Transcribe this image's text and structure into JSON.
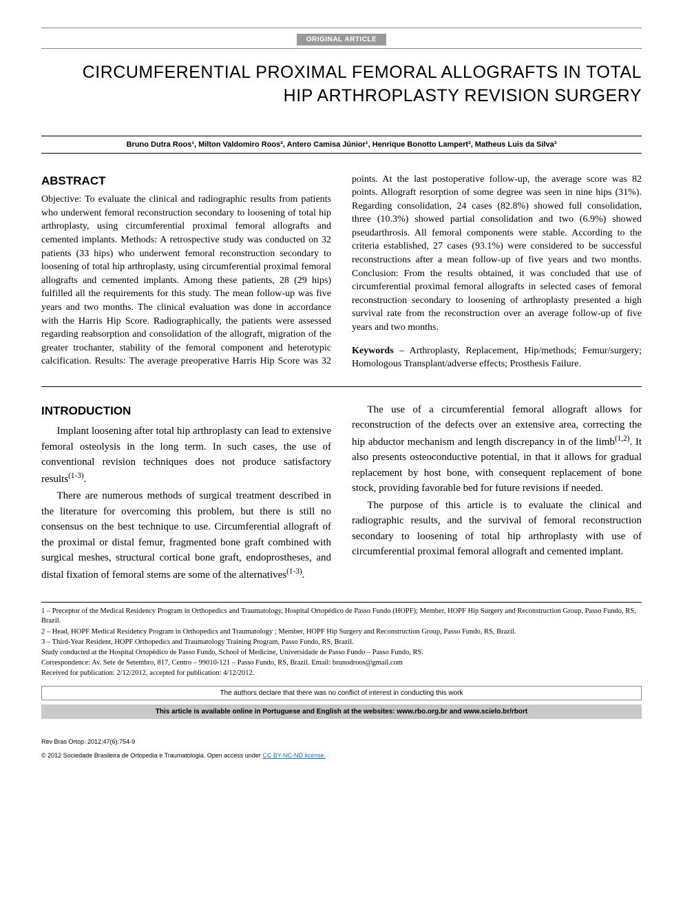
{
  "tag": "ORIGINAL ARTICLE",
  "title_line1": "CIRCUMFERENTIAL PROXIMAL FEMORAL ALLOGRAFTS IN TOTAL",
  "title_line2": "HIP ARTHROPLASTY REVISION SURGERY",
  "authors": "Bruno Dutra Roos¹, Milton Valdomiro Roos², Antero Camisa Júnior¹, Henrique Bonotto Lampert³, Matheus Luis da Silva³",
  "abstract": {
    "heading": "ABSTRACT",
    "body_left": "Objective: To evaluate the clinical and radiographic results from patients who underwent femoral reconstruction secondary to loosening of total hip arthroplasty, using circumferential proximal femoral allografts and cemented implants. Methods: A retrospective study was conducted on 32 patients (33 hips) who underwent femoral reconstruction secondary to loosening of total hip arthroplasty, using circumferential proximal femoral allografts and cemented implants. Among these patients, 28 (29 hips) fulfilled all the requirements for this study. The mean follow-up was five years and two months. The clinical evaluation was done in accordance with the Harris Hip Score. Radiographically, the patients were assessed regarding reabsorption and consolidation of the allograft, migration of the greater trochanter, stability of the femoral component and heterotypic calcification. Results: The average preoperative Harris Hip Score was 32 points. At the",
    "body_right": "last postoperative follow-up, the average score was 82 points. Allograft resorption of some degree was seen in nine hips (31%). Regarding consolidation, 24 cases (82.8%) showed full consolidation, three (10.3%) showed partial consolidation and two (6.9%) showed pseudarthrosis. All femoral components were stable. According to the criteria established, 27 cases (93.1%) were considered to be successful reconstructions after a mean follow-up of five years and two months. Conclusion: From the results obtained, it was concluded that use of circumferential proximal femoral allografts in selected cases of femoral reconstruction secondary to loosening of arthroplasty presented a high survival rate from the reconstruction over an average follow-up of five years and two months.",
    "keywords_label": "Keywords",
    "keywords": " – Arthroplasty, Replacement, Hip/methods; Femur/surgery; Homologous Transplant/adverse effects; Prosthesis Failure."
  },
  "intro": {
    "heading": "INTRODUCTION",
    "p1": "Implant loosening after total hip arthroplasty can lead to extensive femoral osteolysis in the long term. In such cases, the use of conventional revision techniques does not produce satisfactory results",
    "p1_cite": "(1-3)",
    "p2": "There are numerous methods of surgical treatment described in the literature for overcoming this problem, but there is still no consensus on the best technique to use. Circumferential allograft of the proximal or distal femur, fragmented bone graft combined with surgical meshes, structural cortical bone graft, endoprostheses, and distal fixation of femoral stems are some of the alternatives",
    "p2_cite": "(1-3)",
    "p3a": "The use of a circumferential femoral allograft allows for reconstruction of the defects over an extensive area, correcting the hip abductor mechanism and length discrepancy in of the limb",
    "p3_cite": "(1,2)",
    "p3b": ". It also presents osteoconductive potential, in that it allows for gradual replacement by host bone, with consequent replacement of bone stock, providing favorable bed for future revisions if needed.",
    "p4": "The purpose of this article is to evaluate the clinical and radiographic results, and the survival of femoral reconstruction secondary to loosening of total hip arthroplasty with use of circumferential proximal femoral allograft and cemented implant."
  },
  "footnotes": {
    "f1": "1 – Preceptor of the Medical Residency Program in Orthopedics and Traumatology, Hospital Ortopédico de Passo Fundo (HOPF); Member, HOPF Hip Surgery and Reconstruction Group, Passo Fundo, RS, Brazil.",
    "f2": "2 – Head, HOPF Medical Residency Program in Orthopedics and Traumatology ; Member, HOPF Hip Surgery and Reconstruction Group, Passo Fundo, RS, Brazil.",
    "f3": "3 – Third-Year Resident, HOPF Orthopedics and Traumatology Training Program, Passo Fundo, RS, Brazil.",
    "study": "Study conducted at the Hospital Ortopédico de Passo Fundo, School of Medicine, Universidade de Passo Fundo – Passo Fundo, RS.",
    "corr": "Correspondence: Av. Sete de Setembro, 817, Centro – 99010-121 – Passo Fundo, RS, Brazil. Email: brunodroos@gmail.com",
    "received": "Received for publication: 2/12/2012, accepted for publication: 4/12/2012."
  },
  "disclaimer": "The authors declare that there was no conflict of interest in conducting this work",
  "availability": "This article is available online in Portuguese and English at the websites: www.rbo.org.br and www.scielo.br/rbort",
  "citation": "Rev Bras Ortop. 2012;47(6):754-9",
  "copyright_prefix": "© 2012 Sociedade Brasileira de Ortopedia e Traumatologia. Open access under ",
  "license_text": "CC BY-NC-ND license.",
  "colors": {
    "tag_bg": "#999999",
    "tag_fg": "#ffffff",
    "avail_bg": "#c9c9c9",
    "link": "#1a6fb5",
    "text": "#000000",
    "rule": "#000000"
  },
  "typography": {
    "title_fontsize": 25,
    "body_fontsize": 14,
    "intro_fontsize": 15,
    "footnote_fontsize": 10.5,
    "heading_fontsize": 17
  }
}
